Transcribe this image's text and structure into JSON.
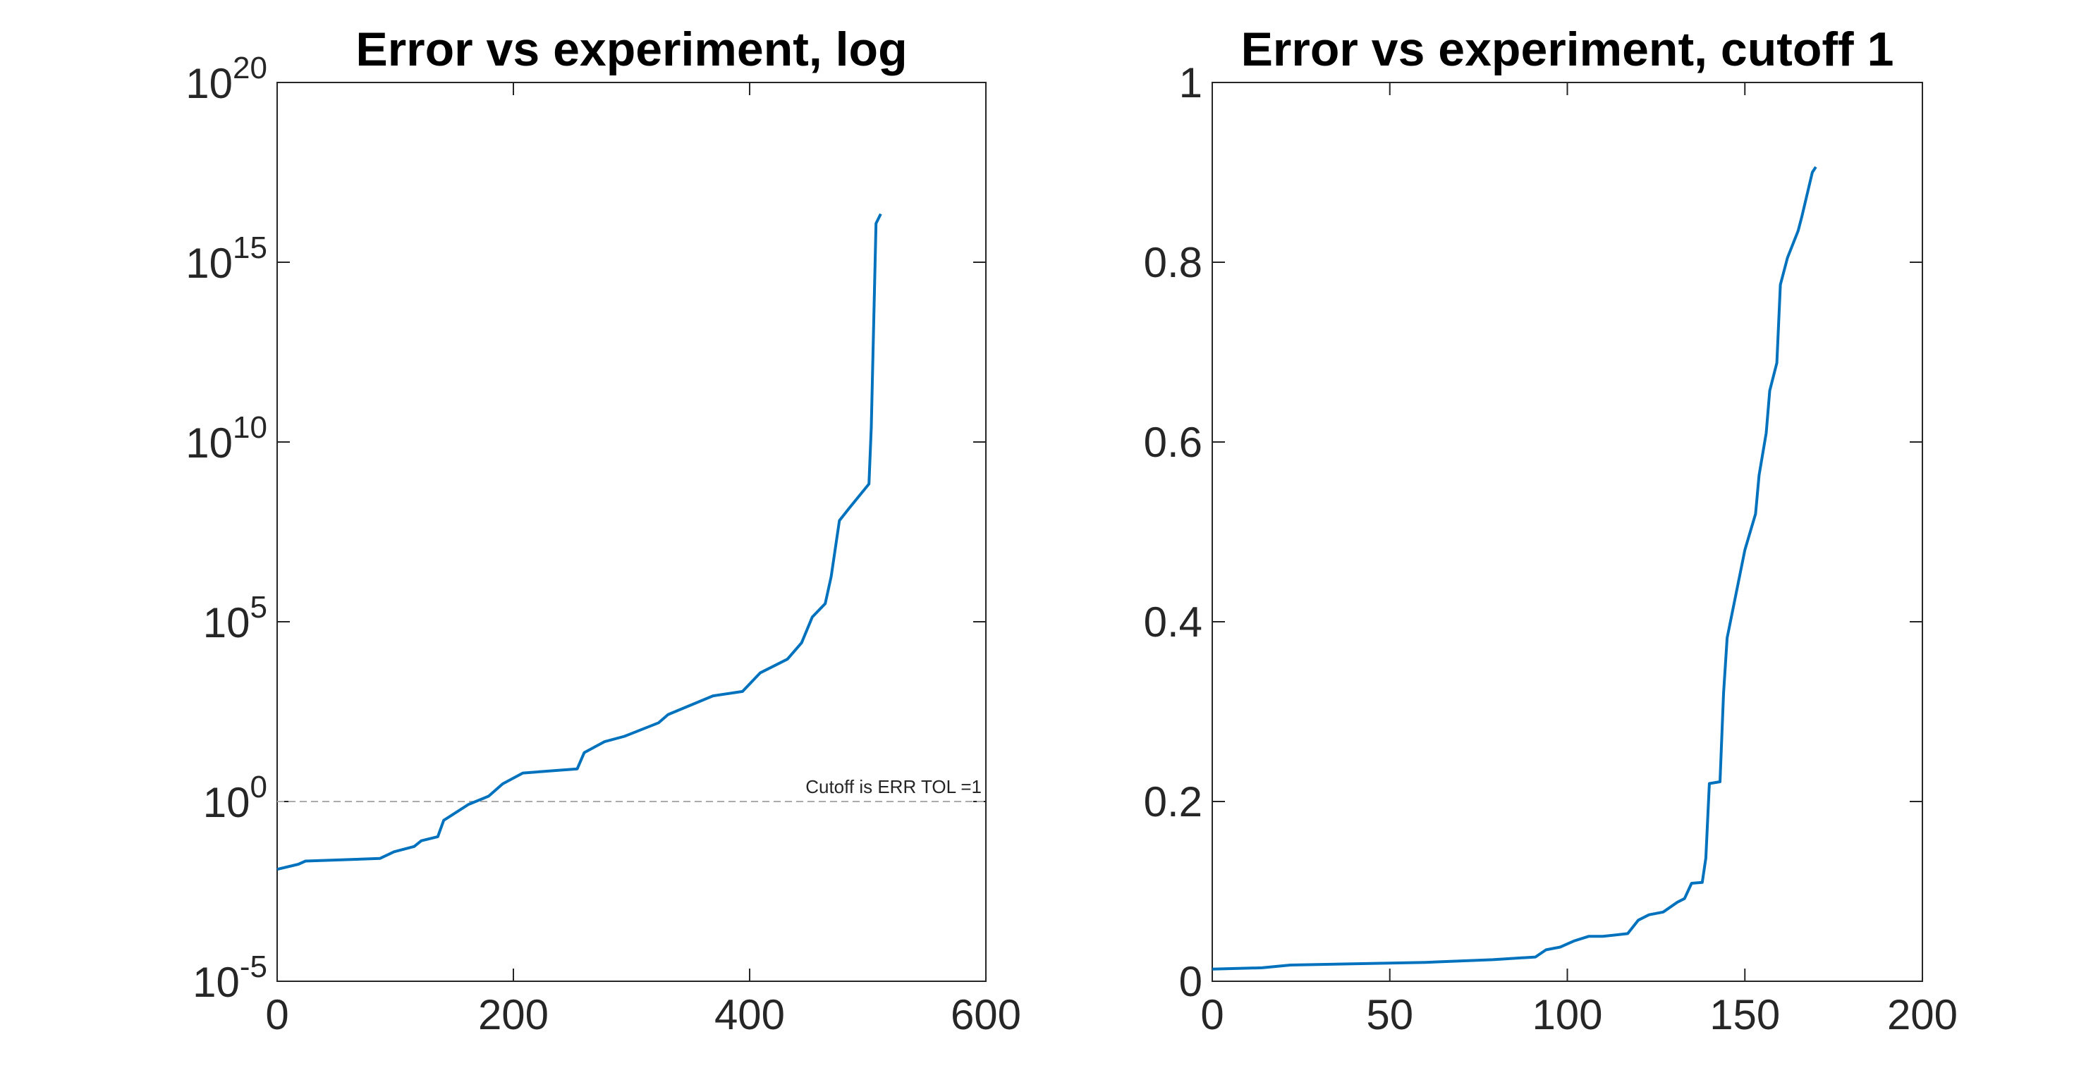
{
  "chart_data": [
    {
      "type": "line",
      "title": "Error vs experiment, log",
      "log_y": true,
      "color": "#0072bd",
      "x": [
        0,
        18,
        24,
        87,
        99,
        116,
        122,
        136,
        141,
        162,
        179,
        191,
        208,
        254,
        260,
        277,
        294,
        323,
        331,
        369,
        394,
        409,
        432,
        444,
        453,
        464,
        469,
        476,
        484,
        501,
        503,
        507,
        511
      ],
      "values": [
        0.013,
        0.018,
        0.022,
        0.026,
        0.04,
        0.056,
        0.081,
        0.105,
        0.3,
        0.83,
        1.4,
        3.1,
        6.2,
        8.1,
        23,
        46,
        65,
        155,
        263,
        871,
        1150,
        3800,
        9100,
        26000,
        135000,
        320000,
        1800000,
        65000000,
        140000000,
        680000000,
        26000000000,
        12000000000000000,
        22000000000000000
      ],
      "xlim": [
        0,
        600
      ],
      "xticks": [
        0,
        200,
        400,
        600
      ],
      "ylim": [
        1e-05,
        100000000000000000000
      ],
      "yticks": [
        {
          "value": 1e-05,
          "label": "10",
          "exponent": "-5"
        },
        {
          "value": 1,
          "label": "10",
          "exponent": "0"
        },
        {
          "value": 100000,
          "label": "10",
          "exponent": "5"
        },
        {
          "value": 10000000000,
          "label": "10",
          "exponent": "10"
        },
        {
          "value": 1000000000000000,
          "label": "10",
          "exponent": "15"
        },
        {
          "value": 100000000000000000000,
          "label": "10",
          "exponent": "20"
        }
      ],
      "annotation": {
        "text": "Cutoff is ERR TOL =1",
        "y": 1
      }
    },
    {
      "type": "line",
      "title": "Error vs experiment, cutoff 1",
      "log_y": false,
      "color": "#0072bd",
      "x": [
        0,
        14,
        22,
        60,
        79,
        91,
        94,
        98,
        102,
        106,
        110,
        117,
        120,
        123,
        127,
        131,
        133,
        135,
        138,
        139,
        140,
        143,
        144,
        145,
        150,
        153,
        154,
        156,
        157,
        159,
        160,
        162,
        165,
        166,
        169,
        170
      ],
      "values": [
        0.0136,
        0.015,
        0.018,
        0.021,
        0.024,
        0.027,
        0.035,
        0.038,
        0.045,
        0.05,
        0.05,
        0.053,
        0.068,
        0.074,
        0.077,
        0.088,
        0.092,
        0.109,
        0.11,
        0.137,
        0.22,
        0.222,
        0.32,
        0.382,
        0.48,
        0.52,
        0.563,
        0.61,
        0.657,
        0.688,
        0.775,
        0.805,
        0.835,
        0.85,
        0.9,
        0.906
      ],
      "xlim": [
        0,
        200
      ],
      "xticks": [
        0,
        50,
        100,
        150,
        200
      ],
      "ylim": [
        0,
        1
      ],
      "yticks": [
        0,
        0.2,
        0.4,
        0.6,
        0.8,
        1
      ]
    }
  ]
}
